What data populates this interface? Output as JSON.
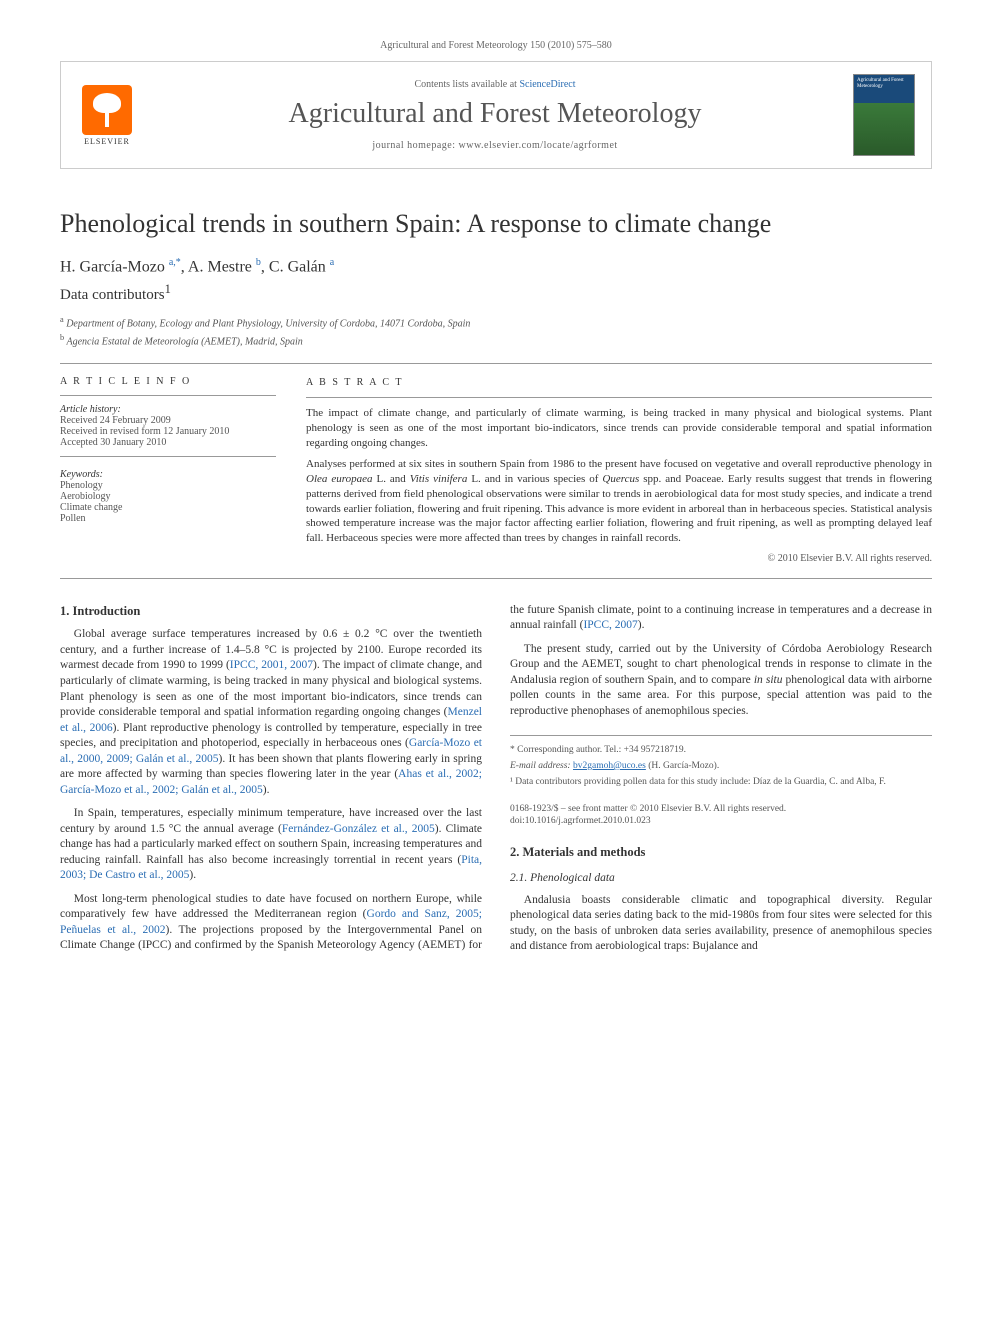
{
  "runningHeader": "Agricultural and Forest Meteorology 150 (2010) 575–580",
  "masthead": {
    "contentsPrefix": "Contents lists available at ",
    "contentsLink": "ScienceDirect",
    "journalName": "Agricultural and Forest Meteorology",
    "homepagePrefix": "journal homepage: ",
    "homepageUrl": "www.elsevier.com/locate/agrformet",
    "elsevierLabel": "ELSEVIER",
    "coverTitle": "Agricultural and Forest Meteorology"
  },
  "title": "Phenological trends in southern Spain: A response to climate change",
  "authorsHtml": "H. García-Mozo <sup>a,*</sup>, A. Mestre <sup>b</sup>, C. Galán <sup>a</sup>",
  "contributorsLine": "Data contributors",
  "contributorsSup": "1",
  "affiliations": [
    {
      "sup": "a",
      "text": "Department of Botany, Ecology and Plant Physiology, University of Cordoba, 14071 Cordoba, Spain"
    },
    {
      "sup": "b",
      "text": "Agencia Estatal de Meteorología (AEMET), Madrid, Spain"
    }
  ],
  "articleInfo": {
    "header": "A R T I C L E   I N F O",
    "historyLabel": "Article history:",
    "history": [
      "Received 24 February 2009",
      "Received in revised form 12 January 2010",
      "Accepted 30 January 2010"
    ],
    "keywordsLabel": "Keywords:",
    "keywords": [
      "Phenology",
      "Aerobiology",
      "Climate change",
      "Pollen"
    ]
  },
  "abstract": {
    "header": "A B S T R A C T",
    "paras": [
      "The impact of climate change, and particularly of climate warming, is being tracked in many physical and biological systems. Plant phenology is seen as one of the most important bio-indicators, since trends can provide considerable temporal and spatial information regarding ongoing changes.",
      "Analyses performed at six sites in southern Spain from 1986 to the present have focused on vegetative and overall reproductive phenology in Olea europaea L. and Vitis vinifera L. and in various species of Quercus spp. and Poaceae. Early results suggest that trends in flowering patterns derived from field phenological observations were similar to trends in aerobiological data for most study species, and indicate a trend towards earlier foliation, flowering and fruit ripening. This advance is more evident in arboreal than in herbaceous species. Statistical analysis showed temperature increase was the major factor affecting earlier foliation, flowering and fruit ripening, as well as prompting delayed leaf fall. Herbaceous species were more affected than trees by changes in rainfall records."
    ],
    "copyright": "© 2010 Elsevier B.V. All rights reserved."
  },
  "sections": {
    "introHeading": "1. Introduction",
    "introParas": [
      "Global average surface temperatures increased by 0.6 ± 0.2 °C over the twentieth century, and a further increase of 1.4–5.8 °C is projected by 2100. Europe recorded its warmest decade from 1990 to 1999 (IPCC, 2001, 2007). The impact of climate change, and particularly of climate warming, is being tracked in many physical and biological systems. Plant phenology is seen as one of the most important bio-indicators, since trends can provide considerable temporal and spatial information regarding ongoing changes (Menzel et al., 2006). Plant reproductive phenology is controlled by temperature, especially in tree species, and precipitation and photoperiod, especially in herbaceous ones (García-Mozo et al., 2000, 2009; Galán et al., 2005). It has been shown that plants flowering early in spring are more affected by warming than species flowering later in the year (Ahas et al., 2002; García-Mozo et al., 2002; Galán et al., 2005).",
      "In Spain, temperatures, especially minimum temperature, have increased over the last century by around 1.5 °C the annual average (Fernández-González et al., 2005). Climate change has had a particularly marked effect on southern Spain, increasing temperatures and reducing rainfall. Rainfall has also become increasingly torrential in recent years (Pita, 2003; De Castro et al., 2005).",
      "Most long-term phenological studies to date have focused on northern Europe, while comparatively few have addressed the Mediterranean region (Gordo and Sanz, 2005; Peñuelas et al., 2002). The projections proposed by the Intergovernmental Panel on Climate Change (IPCC) and confirmed by the Spanish Meteorology Agency (AEMET) for the future Spanish climate, point to a continuing increase in temperatures and a decrease in annual rainfall (IPCC, 2007).",
      "The present study, carried out by the University of Córdoba Aerobiology Research Group and the AEMET, sought to chart phenological trends in response to climate in the Andalusia region of southern Spain, and to compare in situ phenological data with airborne pollen counts in the same area. For this purpose, special attention was paid to the reproductive phenophases of anemophilous species."
    ],
    "mmHeading": "2. Materials and methods",
    "mmSubHeading": "2.1. Phenological data",
    "mmParas": [
      "Andalusia boasts considerable climatic and topographical diversity. Regular phenological data series dating back to the mid-1980s from four sites were selected for this study, on the basis of unbroken data series availability, presence of anemophilous species and distance from aerobiological traps: Bujalance and"
    ]
  },
  "footnotes": {
    "corr": "* Corresponding author. Tel.: +34 957218719.",
    "emailLabel": "E-mail address:",
    "email": "bv2gamoh@uco.es",
    "emailOwner": "(H. García-Mozo).",
    "note1": "¹ Data contributors providing pollen data for this study include: Díaz de la Guardia, C. and Alba, F."
  },
  "frontmatter": {
    "issn": "0168-1923/$ – see front matter © 2010 Elsevier B.V. All rights reserved.",
    "doi": "doi:10.1016/j.agrformet.2010.01.023"
  },
  "refsToColor": [
    "IPCC, 2001, 2007",
    "Menzel et al., 2006",
    "García-Mozo et al., 2000, 2009; Galán et al., 2005",
    "Ahas et al., 2002; García-Mozo et al., 2002; Galán et al., 2005",
    "Fernández-González et al., 2005",
    "Pita, 2003; De Castro et al., 2005",
    "Gordo and Sanz, 2005; Peñuelas et al., 2002",
    "IPCC, 2007"
  ],
  "italics": [
    "Olea europaea",
    "Vitis vinifera",
    "Quercus",
    "in situ"
  ]
}
